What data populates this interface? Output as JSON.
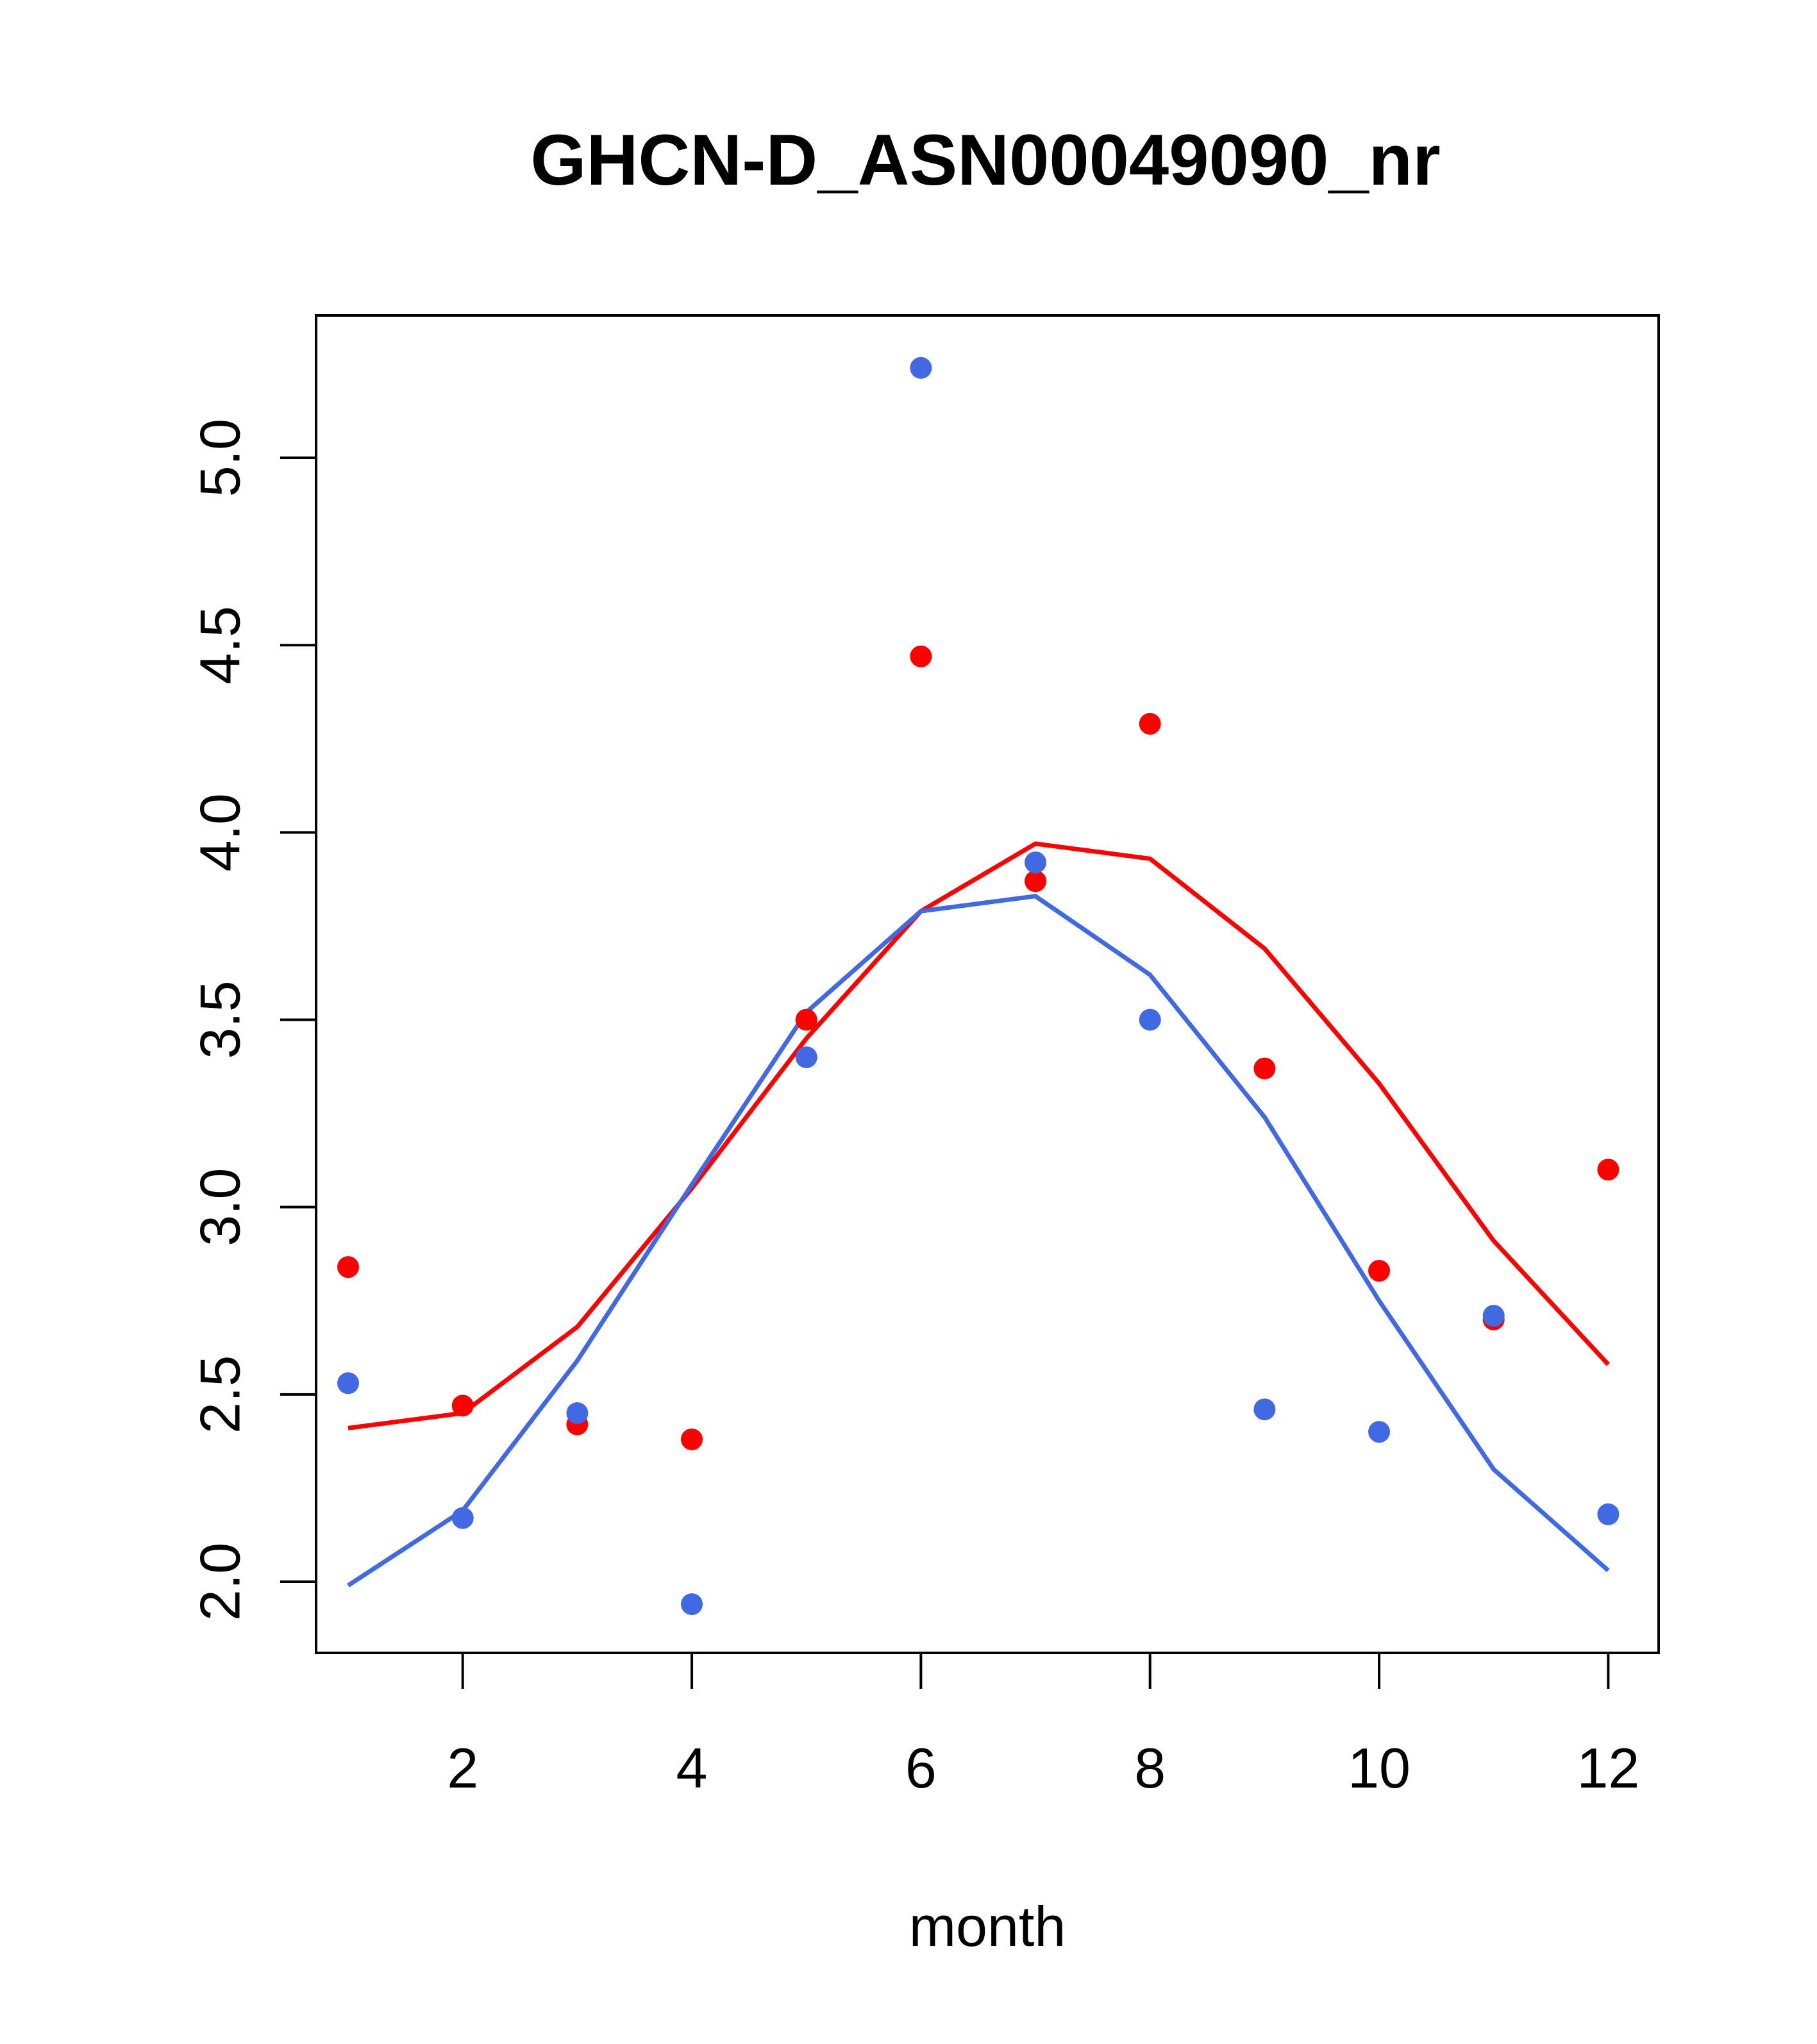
{
  "chart_data": {
    "type": "scatter",
    "title": "GHCN-D_ASN00049090_nr",
    "xlabel": "month",
    "ylabel": "",
    "xlim": [
      0.72,
      12.44
    ],
    "ylim": [
      1.81,
      5.38
    ],
    "x_ticks": [
      2,
      4,
      6,
      8,
      10,
      12
    ],
    "y_ticks": [
      2.0,
      2.5,
      3.0,
      3.5,
      4.0,
      4.5,
      5.0
    ],
    "x_tick_labels": [
      "2",
      "4",
      "6",
      "8",
      "10",
      "12"
    ],
    "y_tick_labels": [
      "2.0",
      "2.5",
      "3.0",
      "3.5",
      "4.0",
      "4.5",
      "5.0"
    ],
    "grid": false,
    "legend": "none",
    "x": [
      1,
      2,
      3,
      4,
      5,
      6,
      7,
      8,
      9,
      10,
      11,
      12
    ],
    "series": [
      {
        "color": "#ff0000",
        "points": [
          2.84,
          2.47,
          2.42,
          2.38,
          3.5,
          4.47,
          3.87,
          4.29,
          3.37,
          2.83,
          2.7,
          3.1
        ],
        "fitted": [
          2.41,
          2.45,
          2.68,
          3.05,
          3.45,
          3.79,
          3.97,
          3.93,
          3.69,
          3.33,
          2.91,
          2.58
        ]
      },
      {
        "color": "#4169e1",
        "points": [
          2.53,
          2.17,
          2.45,
          1.94,
          3.4,
          5.24,
          3.92,
          3.5,
          2.46,
          2.4,
          2.71,
          2.18
        ],
        "fitted": [
          1.99,
          2.19,
          2.59,
          3.06,
          3.52,
          3.79,
          3.83,
          3.62,
          3.24,
          2.75,
          2.3,
          2.03
        ]
      }
    ]
  }
}
